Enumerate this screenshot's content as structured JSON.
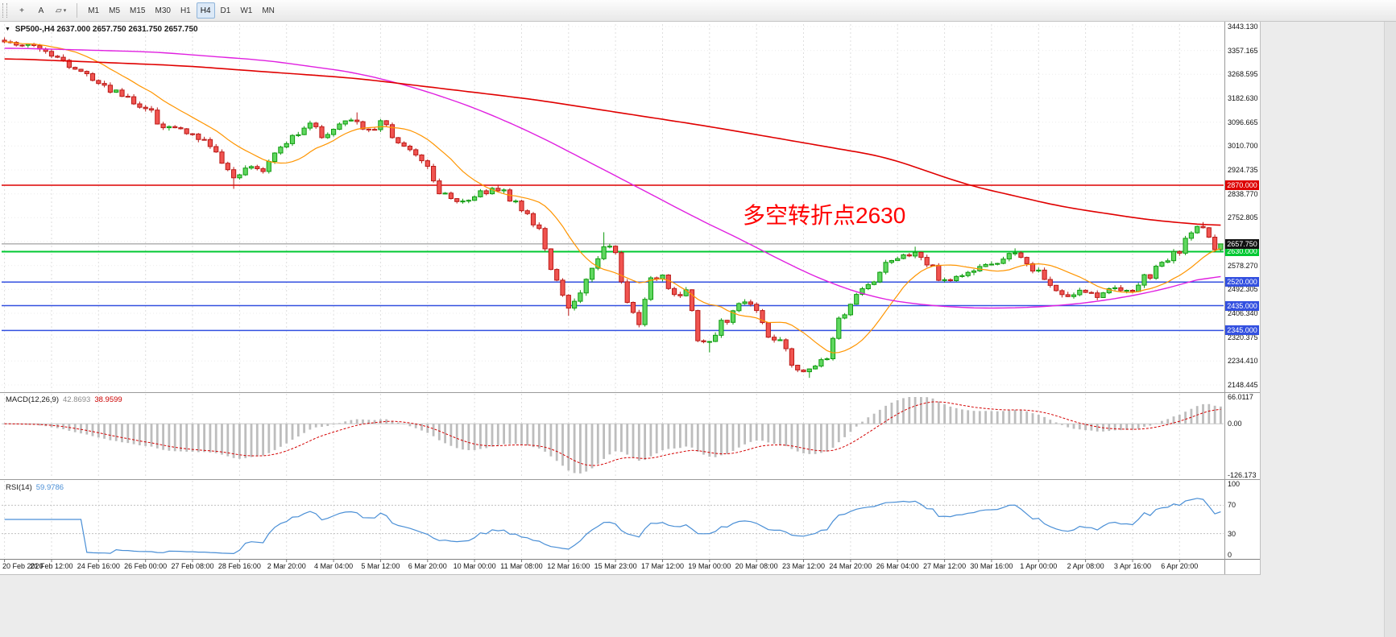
{
  "toolbar": {
    "tools": [
      {
        "name": "crosshair-tool",
        "glyph": "+"
      },
      {
        "name": "text-label-tool",
        "glyph": "A"
      },
      {
        "name": "shapes-tool",
        "glyph": "▱",
        "caret": "▾"
      }
    ],
    "timeframes": [
      {
        "label": "M1",
        "active": false
      },
      {
        "label": "M5",
        "active": false
      },
      {
        "label": "M15",
        "active": false
      },
      {
        "label": "M30",
        "active": false
      },
      {
        "label": "H1",
        "active": false
      },
      {
        "label": "H4",
        "active": true
      },
      {
        "label": "D1",
        "active": false
      },
      {
        "label": "W1",
        "active": false
      },
      {
        "label": "MN",
        "active": false
      }
    ]
  },
  "chart": {
    "collapse_glyph": "▼",
    "symbol_label": "SP500-,H4",
    "ohlc_values": "2637.000 2657.750 2631.750 2657.750",
    "annotation": "多空转折点2630",
    "annotation_color": "#ff0000"
  },
  "macd": {
    "title": "MACD(12,26,9)",
    "value_main": "42.8693",
    "value_signal": "38.9599"
  },
  "rsi": {
    "title": "RSI(14)",
    "value": "59.9786"
  },
  "chart_data": {
    "type": "candlestick",
    "symbol": "SP500-",
    "timeframe": "H4",
    "num_candles": 208,
    "label_every": 8,
    "y_min": 2148.445,
    "y_max": 3443.13,
    "y_axis_labels": [
      "3443.130",
      "3357.165",
      "3268.595",
      "3182.630",
      "3096.665",
      "3010.700",
      "2924.735",
      "2838.770",
      "2752.805",
      "",
      "2578.270",
      "2492.305",
      "2406.340",
      "2320.375",
      "2234.410",
      "2148.445"
    ],
    "x_labels": [
      "20 Feb 2020",
      "21 Feb 12:00",
      "24 Feb 16:00",
      "26 Feb 00:00",
      "27 Feb 08:00",
      "28 Feb 16:00",
      "2 Mar 20:00",
      "4 Mar 04:00",
      "5 Mar 12:00",
      "6 Mar 20:00",
      "10 Mar 00:00",
      "11 Mar 08:00",
      "12 Mar 16:00",
      "15 Mar 23:00",
      "17 Mar 12:00",
      "19 Mar 00:00",
      "20 Mar 08:00",
      "23 Mar 12:00",
      "24 Mar 20:00",
      "26 Mar 04:00",
      "27 Mar 12:00",
      "30 Mar 16:00",
      "1 Apr 00:00",
      "2 Apr 08:00",
      "3 Apr 16:00",
      "6 Apr 20:00"
    ],
    "close_anchors": [
      [
        0,
        3388
      ],
      [
        4,
        3375
      ],
      [
        8,
        3342
      ],
      [
        12,
        3295
      ],
      [
        16,
        3248
      ],
      [
        20,
        3190
      ],
      [
        24,
        3150
      ],
      [
        27,
        3085
      ],
      [
        31,
        3060
      ],
      [
        34,
        3020
      ],
      [
        37,
        2958
      ],
      [
        39,
        2890
      ],
      [
        41,
        2940
      ],
      [
        44,
        2915
      ],
      [
        47,
        3000
      ],
      [
        50,
        3062
      ],
      [
        52,
        3088
      ],
      [
        54,
        3045
      ],
      [
        57,
        3098
      ],
      [
        60,
        3105
      ],
      [
        62,
        3070
      ],
      [
        64,
        3100
      ],
      [
        67,
        3030
      ],
      [
        70,
        2972
      ],
      [
        72,
        2928
      ],
      [
        74,
        2842
      ],
      [
        77,
        2812
      ],
      [
        80,
        2826
      ],
      [
        83,
        2862
      ],
      [
        85,
        2850
      ],
      [
        87,
        2798
      ],
      [
        89,
        2755
      ],
      [
        91,
        2712
      ],
      [
        93,
        2580
      ],
      [
        96,
        2420
      ],
      [
        98,
        2465
      ],
      [
        100,
        2580
      ],
      [
        102,
        2660
      ],
      [
        104,
        2630
      ],
      [
        106,
        2435
      ],
      [
        108,
        2378
      ],
      [
        110,
        2520
      ],
      [
        112,
        2535
      ],
      [
        114,
        2462
      ],
      [
        116,
        2492
      ],
      [
        118,
        2320
      ],
      [
        120,
        2290
      ],
      [
        122,
        2375
      ],
      [
        124,
        2405
      ],
      [
        126,
        2448
      ],
      [
        128,
        2405
      ],
      [
        130,
        2332
      ],
      [
        132,
        2302
      ],
      [
        134,
        2232
      ],
      [
        136,
        2200
      ],
      [
        138,
        2215
      ],
      [
        140,
        2258
      ],
      [
        142,
        2375
      ],
      [
        145,
        2462
      ],
      [
        148,
        2535
      ],
      [
        150,
        2578
      ],
      [
        153,
        2612
      ],
      [
        155,
        2622
      ],
      [
        157,
        2595
      ],
      [
        159,
        2538
      ],
      [
        161,
        2522
      ],
      [
        164,
        2550
      ],
      [
        167,
        2578
      ],
      [
        170,
        2612
      ],
      [
        172,
        2622
      ],
      [
        174,
        2595
      ],
      [
        176,
        2550
      ],
      [
        178,
        2506
      ],
      [
        181,
        2468
      ],
      [
        183,
        2492
      ],
      [
        186,
        2468
      ],
      [
        189,
        2497
      ],
      [
        192,
        2486
      ],
      [
        194,
        2535
      ],
      [
        198,
        2594
      ],
      [
        200,
        2636
      ],
      [
        202,
        2694
      ],
      [
        204,
        2724
      ],
      [
        205,
        2680
      ],
      [
        206,
        2637
      ],
      [
        207,
        2657.75
      ]
    ],
    "wick_spikes": [
      [
        39,
        "low",
        2857
      ],
      [
        60,
        "high",
        3133
      ],
      [
        84,
        "high",
        2872
      ],
      [
        96,
        "low",
        2398
      ],
      [
        102,
        "high",
        2700
      ],
      [
        108,
        "low",
        2362
      ],
      [
        120,
        "low",
        2266
      ],
      [
        137,
        "low",
        2174
      ],
      [
        155,
        "high",
        2648
      ],
      [
        172,
        "high",
        2642
      ],
      [
        204,
        "high",
        2737
      ]
    ],
    "current_bar": {
      "open": 2637.0,
      "high": 2657.75,
      "low": 2631.75,
      "close": 2657.75
    },
    "bull_color": {
      "fill": "#5fd75f",
      "stroke": "#0f9b0f"
    },
    "bear_color": {
      "fill": "#f05450",
      "stroke": "#bb1a17"
    },
    "moving_averages": [
      {
        "name": "ma-fast",
        "color": "#ff9500",
        "period": 13
      },
      {
        "name": "ma-medium",
        "color": "#e020e0",
        "anchors": [
          [
            0,
            3366
          ],
          [
            25,
            3352
          ],
          [
            45,
            3320
          ],
          [
            60,
            3276
          ],
          [
            70,
            3222
          ],
          [
            80,
            3150
          ],
          [
            90,
            3058
          ],
          [
            100,
            2948
          ],
          [
            110,
            2838
          ],
          [
            118,
            2748
          ],
          [
            125,
            2678
          ],
          [
            132,
            2600
          ],
          [
            140,
            2520
          ],
          [
            148,
            2464
          ],
          [
            155,
            2440
          ],
          [
            165,
            2425
          ],
          [
            175,
            2428
          ],
          [
            185,
            2446
          ],
          [
            195,
            2482
          ],
          [
            202,
            2522
          ],
          [
            207,
            2552
          ]
        ]
      },
      {
        "name": "ma-slow",
        "color": "#e00000",
        "anchors": [
          [
            0,
            3328
          ],
          [
            30,
            3302
          ],
          [
            60,
            3256
          ],
          [
            90,
            3180
          ],
          [
            120,
            3082
          ],
          [
            150,
            2972
          ],
          [
            164,
            2870
          ],
          [
            180,
            2792
          ],
          [
            195,
            2744
          ],
          [
            207,
            2722
          ]
        ]
      }
    ],
    "levels": [
      {
        "price": 2870.0,
        "label": "2870.000",
        "color": "#dd0000",
        "width": 1.4
      },
      {
        "price": 2630.0,
        "label": "2630.000",
        "color": "#00c832",
        "width": 2
      },
      {
        "price": 2520.0,
        "label": "2520.000",
        "color": "#3350e0",
        "width": 1.5
      },
      {
        "price": 2435.0,
        "label": "2435.000",
        "color": "#3350e0",
        "width": 1.5
      },
      {
        "price": 2345.0,
        "label": "2345.000",
        "color": "#3350e0",
        "width": 1.5
      }
    ],
    "current_price": {
      "value": 2657.75,
      "label": "2657.750",
      "tag_bg": "#111111",
      "line_color": "#8a8a8a"
    },
    "macd_panel": {
      "ema_fast": 12,
      "ema_slow": 26,
      "signal": 9,
      "range": [
        -126.173,
        66.0117
      ],
      "axis_labels": [
        "66.0117",
        "0.00",
        "-126.173"
      ],
      "hist_color": "#bdbdbd",
      "signal_color": "#d40000"
    },
    "rsi_panel": {
      "period": 14,
      "range": [
        0,
        100
      ],
      "axis_labels": [
        100,
        70,
        30,
        0
      ],
      "guide_levels": [
        70,
        30
      ],
      "line_color": "#4a8fd6"
    },
    "grid_color": "#dedede"
  }
}
